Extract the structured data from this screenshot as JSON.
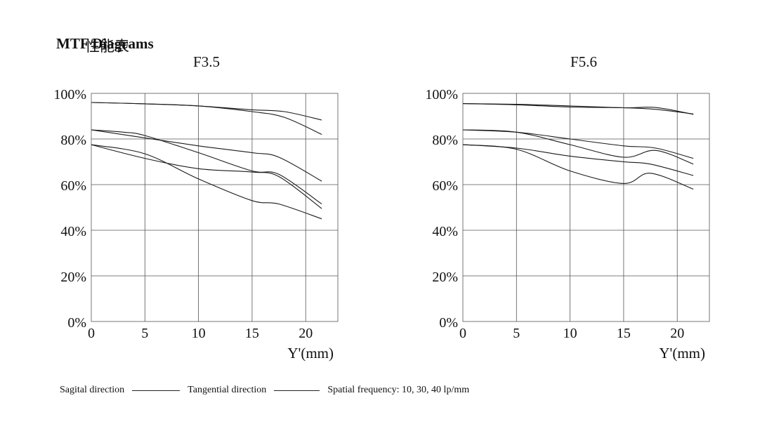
{
  "page": {
    "title_en": "MTF Diagrams",
    "title_cn": "性能表"
  },
  "legend": {
    "sagittal": "Sagital direction",
    "tangential": "Tangential direction",
    "frequency": "Spatial frequency: 10, 30, 40 lp/mm"
  },
  "chart_data": [
    {
      "type": "line",
      "title": "F3.5",
      "xlabel": "Y'(mm)",
      "ylabel": "",
      "xlim": [
        0,
        23
      ],
      "ylim": [
        0,
        100
      ],
      "xticks": [
        0,
        5,
        10,
        15,
        20
      ],
      "yticks": [
        0,
        20,
        40,
        60,
        80,
        100
      ],
      "xtick_labels": [
        "0",
        "5",
        "10",
        "15",
        "20"
      ],
      "ytick_labels": [
        "0%",
        "20%",
        "40%",
        "60%",
        "80%",
        "100%"
      ],
      "grid": true,
      "series": [
        {
          "name": "10 lp/mm sagittal",
          "x": [
            0,
            5,
            10,
            15,
            18,
            21.5
          ],
          "y": [
            96,
            95.4,
            94.5,
            92.8,
            92,
            88.3
          ]
        },
        {
          "name": "10 lp/mm tangential",
          "x": [
            0,
            5,
            10,
            15,
            18,
            21.5
          ],
          "y": [
            96,
            95.4,
            94.5,
            92,
            89.5,
            82
          ]
        },
        {
          "name": "30 lp/mm sagittal",
          "x": [
            0,
            5,
            10,
            15,
            17.5,
            21.5
          ],
          "y": [
            84,
            80.5,
            77,
            74,
            72,
            61.5
          ]
        },
        {
          "name": "30 lp/mm tangential",
          "x": [
            0,
            3,
            5,
            10,
            15,
            17.5,
            21.5
          ],
          "y": [
            84,
            83,
            81.5,
            74,
            66,
            64.5,
            51.5
          ]
        },
        {
          "name": "40 lp/mm sagittal",
          "x": [
            0,
            5,
            10,
            15,
            17.5,
            21.5
          ],
          "y": [
            77.5,
            71.5,
            67,
            65.5,
            63.5,
            49.5
          ]
        },
        {
          "name": "40 lp/mm tangential",
          "x": [
            0,
            5,
            10,
            15,
            17.5,
            21.5
          ],
          "y": [
            77.5,
            73.5,
            62.5,
            53,
            51.5,
            45
          ]
        }
      ]
    },
    {
      "type": "line",
      "title": "F5.6",
      "xlabel": "Y'(mm)",
      "ylabel": "",
      "xlim": [
        0,
        23
      ],
      "ylim": [
        0,
        100
      ],
      "xticks": [
        0,
        5,
        10,
        15,
        20
      ],
      "yticks": [
        0,
        20,
        40,
        60,
        80,
        100
      ],
      "xtick_labels": [
        "0",
        "5",
        "10",
        "15",
        "20"
      ],
      "ytick_labels": [
        "0%",
        "20%",
        "40%",
        "60%",
        "80%",
        "100%"
      ],
      "grid": true,
      "series": [
        {
          "name": "10 lp/mm sagittal",
          "x": [
            0,
            5,
            10,
            15,
            18,
            21.5
          ],
          "y": [
            95.5,
            95.2,
            94.5,
            93.7,
            93.8,
            90.8
          ]
        },
        {
          "name": "10 lp/mm tangential",
          "x": [
            0,
            5,
            10,
            15,
            18,
            21.5
          ],
          "y": [
            95.5,
            95,
            94,
            93.7,
            93,
            91
          ]
        },
        {
          "name": "30 lp/mm sagittal",
          "x": [
            0,
            5,
            10,
            15,
            18,
            21.5
          ],
          "y": [
            84,
            83,
            80,
            77,
            76,
            71.5
          ]
        },
        {
          "name": "30 lp/mm tangential",
          "x": [
            0,
            5,
            10,
            15,
            18,
            21.5
          ],
          "y": [
            84,
            83,
            77.5,
            72,
            75,
            69
          ]
        },
        {
          "name": "40 lp/mm sagittal",
          "x": [
            0,
            5,
            10,
            15,
            17.5,
            21.5
          ],
          "y": [
            77.5,
            76,
            72.5,
            70,
            69,
            64
          ]
        },
        {
          "name": "40 lp/mm tangential",
          "x": [
            0,
            5,
            10,
            15,
            17.5,
            21.5
          ],
          "y": [
            77.5,
            75.5,
            66,
            60.5,
            65,
            58
          ]
        }
      ]
    }
  ]
}
